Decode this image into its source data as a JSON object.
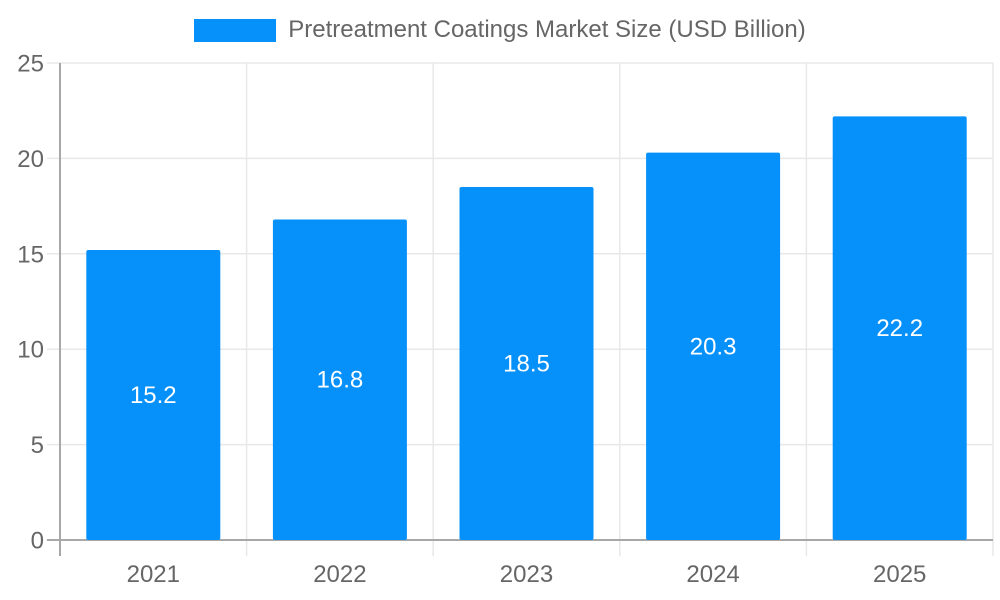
{
  "legend": {
    "items": [
      {
        "label": "Pretreatment Coatings Market Size (USD Billion)"
      }
    ]
  },
  "chart_data": {
    "type": "bar",
    "title": "Pretreatment Coatings Market Size (USD Billion)",
    "categories": [
      "2021",
      "2022",
      "2023",
      "2024",
      "2025"
    ],
    "values": [
      15.2,
      16.8,
      18.5,
      20.3,
      22.2
    ],
    "value_labels": [
      "15.2",
      "16.8",
      "18.5",
      "20.3",
      "22.2"
    ],
    "ytick_labels": [
      "0",
      "5",
      "10",
      "15",
      "20",
      "25"
    ],
    "yticks": [
      0,
      5,
      10,
      15,
      20,
      25
    ],
    "ylim": [
      0,
      25
    ],
    "xlabel": "",
    "ylabel": "",
    "grid": true,
    "legend_position": "top",
    "colors": {
      "bar": "#0590FA",
      "value_label": "#FFFFFF",
      "grid_line": "#E8E8E8",
      "axis_line": "#A8A8A8",
      "tick_label": "#666666",
      "legend_text": "#666666",
      "background": "#FFFFFF"
    }
  }
}
